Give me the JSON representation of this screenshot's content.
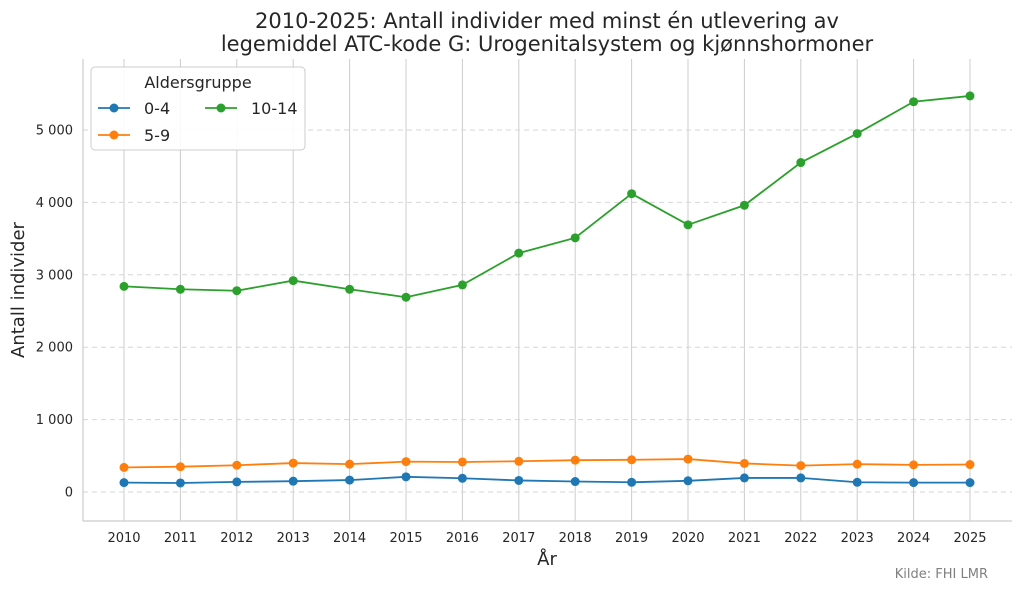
{
  "chart_data": {
    "type": "line",
    "title_lines": [
      "2010-2025: Antall individer med minst én utlevering av",
      "legemiddel ATC-kode G: Urogenitalsystem og kjønnshormoner"
    ],
    "xlabel": "År",
    "ylabel": "Antall individer",
    "x": [
      2010,
      2011,
      2012,
      2013,
      2014,
      2015,
      2016,
      2017,
      2018,
      2019,
      2020,
      2021,
      2022,
      2023,
      2024,
      2025
    ],
    "x_tick_labels": [
      "2010",
      "2011",
      "2012",
      "2013",
      "2014",
      "2015",
      "2016",
      "2017",
      "2018",
      "2019",
      "2020",
      "2021",
      "2022",
      "2023",
      "2024",
      "2025"
    ],
    "ylim": [
      -400,
      5980
    ],
    "y_ticks": [
      0,
      1000,
      2000,
      3000,
      4000,
      5000
    ],
    "y_tick_labels": [
      "0",
      "1 000",
      "2 000",
      "3 000",
      "4 000",
      "5 000"
    ],
    "grid": {
      "x": "solid",
      "y": "dashed"
    },
    "legend": {
      "title": "Aldersgruppe",
      "placement": "top-left",
      "columns": 2
    },
    "series": [
      {
        "name": "0-4",
        "color": "#1f77b4",
        "values": [
          130,
          125,
          140,
          150,
          165,
          210,
          190,
          160,
          145,
          135,
          155,
          195,
          195,
          135,
          130,
          130
        ]
      },
      {
        "name": "5-9",
        "color": "#ff7f0e",
        "values": [
          340,
          350,
          370,
          400,
          385,
          420,
          415,
          425,
          440,
          445,
          455,
          395,
          365,
          385,
          375,
          380
        ]
      },
      {
        "name": "10-14",
        "color": "#2ca02c",
        "values": [
          2840,
          2800,
          2780,
          2920,
          2800,
          2690,
          2860,
          3300,
          3510,
          4120,
          3690,
          3960,
          4550,
          4950,
          5390,
          5470
        ]
      }
    ],
    "source_note": "Kilde: FHI LMR"
  }
}
